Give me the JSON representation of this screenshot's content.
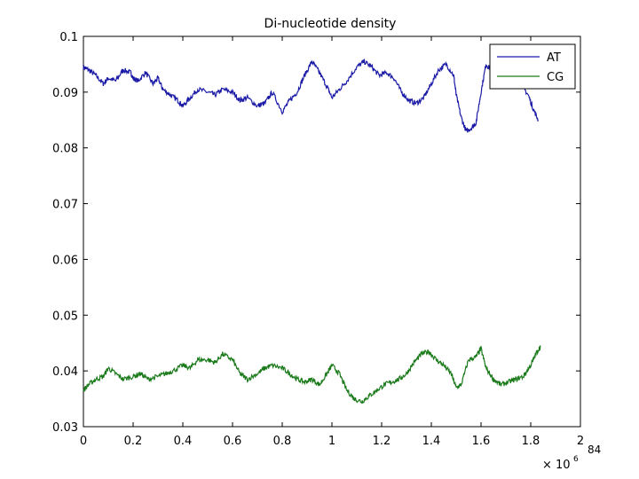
{
  "page_number": "84",
  "chart_data": {
    "type": "line",
    "title": "Di-nucleotide density",
    "xlabel": "",
    "ylabel": "",
    "x_multiplier_label": "× 10",
    "x_multiplier_exponent": "6",
    "xlim": [
      0,
      2
    ],
    "ylim": [
      0.03,
      0.1
    ],
    "x_ticks": [
      0,
      0.2,
      0.4,
      0.6,
      0.8,
      1,
      1.2,
      1.4,
      1.6,
      1.8,
      2
    ],
    "x_tick_labels": [
      "0",
      "0.2",
      "0.4",
      "0.6",
      "0.8",
      "1",
      "1.2",
      "1.4",
      "1.6",
      "1.8",
      "2"
    ],
    "y_ticks": [
      0.03,
      0.04,
      0.05,
      0.06,
      0.07,
      0.08,
      0.09,
      0.1
    ],
    "y_tick_labels": [
      "0.03",
      "0.04",
      "0.05",
      "0.06",
      "0.07",
      "0.08",
      "0.09",
      "0.1"
    ],
    "grid": false,
    "legend_position": "top-right",
    "series": [
      {
        "name": "AT",
        "color": "#1a1aa6",
        "x": [
          0,
          0.02,
          0.05,
          0.08,
          0.1,
          0.13,
          0.16,
          0.19,
          0.2,
          0.22,
          0.25,
          0.28,
          0.3,
          0.32,
          0.35,
          0.38,
          0.4,
          0.43,
          0.46,
          0.5,
          0.53,
          0.56,
          0.6,
          0.63,
          0.66,
          0.7,
          0.73,
          0.76,
          0.8,
          0.83,
          0.86,
          0.89,
          0.92,
          0.95,
          0.98,
          1.0,
          1.03,
          1.06,
          1.1,
          1.13,
          1.16,
          1.19,
          1.22,
          1.25,
          1.28,
          1.31,
          1.34,
          1.37,
          1.4,
          1.43,
          1.46,
          1.49,
          1.5,
          1.52,
          1.54,
          1.56,
          1.58,
          1.6,
          1.62,
          1.64,
          1.67,
          1.7,
          1.73,
          1.76,
          1.79,
          1.81,
          1.83
        ],
        "y": [
          0.0945,
          0.094,
          0.093,
          0.0915,
          0.0925,
          0.092,
          0.094,
          0.0935,
          0.0925,
          0.092,
          0.0935,
          0.0915,
          0.0925,
          0.0905,
          0.0895,
          0.0885,
          0.0875,
          0.089,
          0.0905,
          0.09,
          0.0895,
          0.0905,
          0.09,
          0.0885,
          0.089,
          0.0875,
          0.088,
          0.09,
          0.0865,
          0.0885,
          0.09,
          0.093,
          0.0955,
          0.0935,
          0.091,
          0.089,
          0.0905,
          0.092,
          0.0945,
          0.0955,
          0.0945,
          0.093,
          0.0935,
          0.0925,
          0.09,
          0.0885,
          0.088,
          0.089,
          0.0915,
          0.094,
          0.095,
          0.093,
          0.0895,
          0.0855,
          0.083,
          0.0835,
          0.0845,
          0.09,
          0.095,
          0.094,
          0.093,
          0.0935,
          0.0945,
          0.0915,
          0.0895,
          0.087,
          0.085
        ]
      },
      {
        "name": "CG",
        "color": "#1a7a1a",
        "x": [
          0,
          0.02,
          0.05,
          0.08,
          0.1,
          0.13,
          0.16,
          0.2,
          0.23,
          0.26,
          0.3,
          0.33,
          0.36,
          0.4,
          0.43,
          0.46,
          0.5,
          0.53,
          0.56,
          0.6,
          0.63,
          0.66,
          0.7,
          0.73,
          0.76,
          0.8,
          0.83,
          0.86,
          0.89,
          0.92,
          0.95,
          0.98,
          1.0,
          1.03,
          1.06,
          1.09,
          1.12,
          1.15,
          1.18,
          1.21,
          1.24,
          1.27,
          1.3,
          1.33,
          1.36,
          1.39,
          1.42,
          1.45,
          1.48,
          1.5,
          1.52,
          1.55,
          1.58,
          1.6,
          1.62,
          1.65,
          1.68,
          1.71,
          1.74,
          1.77,
          1.8,
          1.82,
          1.84
        ],
        "y": [
          0.0365,
          0.0375,
          0.0385,
          0.039,
          0.0405,
          0.0395,
          0.0385,
          0.039,
          0.0395,
          0.0385,
          0.039,
          0.0395,
          0.04,
          0.041,
          0.0405,
          0.042,
          0.042,
          0.0415,
          0.043,
          0.042,
          0.0395,
          0.0385,
          0.0395,
          0.0405,
          0.041,
          0.0405,
          0.0395,
          0.0385,
          0.038,
          0.0385,
          0.0375,
          0.0395,
          0.041,
          0.0395,
          0.0365,
          0.035,
          0.0345,
          0.0355,
          0.0365,
          0.0375,
          0.038,
          0.0385,
          0.0395,
          0.0415,
          0.043,
          0.0435,
          0.042,
          0.041,
          0.0395,
          0.037,
          0.0375,
          0.042,
          0.0425,
          0.044,
          0.0405,
          0.0385,
          0.0375,
          0.038,
          0.0385,
          0.039,
          0.041,
          0.043,
          0.0445
        ]
      }
    ]
  }
}
